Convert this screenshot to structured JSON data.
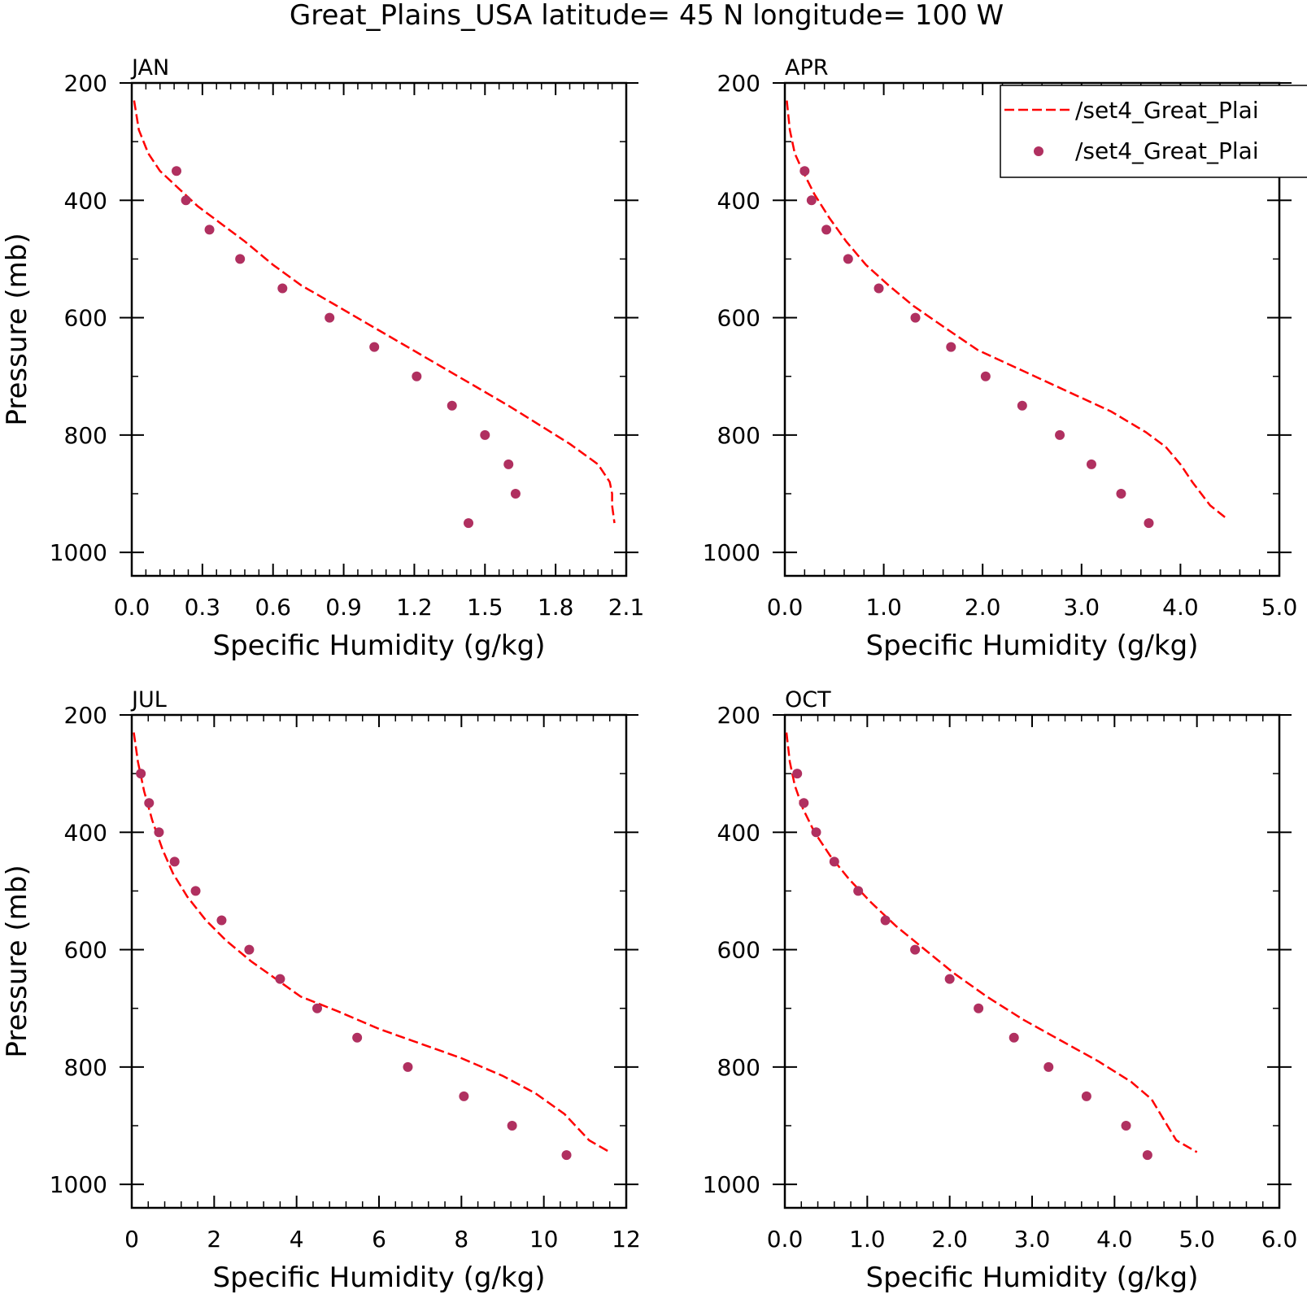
{
  "figure": {
    "title": "Great_Plains_USA  latitude= 45 N longitude= 100 W"
  },
  "legend": {
    "entries": [
      {
        "label": "/set4_Great_Plai",
        "style": "dashed-line",
        "color": "#ff0000"
      },
      {
        "label": "/set4_Great_Plai",
        "style": "dot",
        "color": "#b03060"
      }
    ],
    "placement": "top-right of APR panel"
  },
  "colors": {
    "model_line": "#ff0000",
    "obs_points": "#b03060",
    "axes": "#000000",
    "background": "#ffffff"
  },
  "chart_data": [
    {
      "panel": "JAN",
      "type": "line",
      "xlabel": "Specific Humidity (g/kg)",
      "ylabel": "Pressure (mb)",
      "xlim": [
        0,
        2.1
      ],
      "ylim": [
        1000,
        200
      ],
      "y_inverted": true,
      "xticks": [
        "0.0",
        "0.3",
        "0.6",
        "0.9",
        "1.2",
        "1.5",
        "1.8",
        "2.1"
      ],
      "xtick_values": [
        0,
        0.3,
        0.6,
        0.9,
        1.2,
        1.5,
        1.8,
        2.1
      ],
      "yticks": [
        "200",
        "400",
        "600",
        "800",
        "1000"
      ],
      "ytick_values": [
        200,
        400,
        600,
        800,
        1000
      ],
      "series": [
        {
          "style": "dashed-line",
          "x": [
            0.01,
            0.03,
            0.07,
            0.12,
            0.2,
            0.28,
            0.38,
            0.48,
            0.6,
            0.72,
            0.85,
            1.0,
            1.15,
            1.3,
            1.45,
            1.6,
            1.72,
            1.86,
            1.98,
            2.03,
            2.04,
            2.04,
            2.05
          ],
          "y": [
            230,
            280,
            320,
            350,
            380,
            410,
            440,
            470,
            510,
            545,
            575,
            610,
            645,
            680,
            715,
            750,
            780,
            815,
            850,
            880,
            900,
            920,
            950
          ]
        },
        {
          "style": "points",
          "x": [
            0.19,
            0.23,
            0.33,
            0.46,
            0.64,
            0.84,
            1.03,
            1.21,
            1.36,
            1.5,
            1.6,
            1.63,
            1.43
          ],
          "y": [
            350,
            400,
            450,
            500,
            550,
            600,
            650,
            700,
            750,
            800,
            850,
            900,
            950
          ]
        }
      ]
    },
    {
      "panel": "APR",
      "type": "line",
      "xlabel": "Specific Humidity (g/kg)",
      "ylabel": "",
      "xlim": [
        0,
        5
      ],
      "ylim": [
        1000,
        200
      ],
      "y_inverted": true,
      "xticks": [
        "0.0",
        "1.0",
        "2.0",
        "3.0",
        "4.0",
        "5.0"
      ],
      "xtick_values": [
        0,
        1,
        2,
        3,
        4,
        5
      ],
      "yticks": [
        "200",
        "400",
        "600",
        "800",
        "1000"
      ],
      "ytick_values": [
        200,
        400,
        600,
        800,
        1000
      ],
      "series": [
        {
          "style": "dashed-line",
          "x": [
            0.02,
            0.05,
            0.1,
            0.18,
            0.3,
            0.45,
            0.62,
            0.82,
            1.05,
            1.3,
            1.6,
            1.95,
            2.4,
            2.85,
            3.3,
            3.65,
            3.85,
            4.0,
            4.12,
            4.3,
            4.45
          ],
          "y": [
            230,
            280,
            320,
            350,
            390,
            430,
            470,
            510,
            545,
            580,
            615,
            655,
            690,
            725,
            760,
            795,
            820,
            850,
            880,
            920,
            940
          ]
        },
        {
          "style": "points",
          "x": [
            0.2,
            0.27,
            0.42,
            0.64,
            0.95,
            1.32,
            1.68,
            2.03,
            2.4,
            2.78,
            3.1,
            3.4,
            3.68
          ],
          "y": [
            350,
            400,
            450,
            500,
            550,
            600,
            650,
            700,
            750,
            800,
            850,
            900,
            950
          ]
        }
      ]
    },
    {
      "panel": "JUL",
      "type": "line",
      "xlabel": "Specific Humidity (g/kg)",
      "ylabel": "Pressure (mb)",
      "xlim": [
        0,
        12
      ],
      "ylim": [
        1000,
        200
      ],
      "y_inverted": true,
      "xticks": [
        "0",
        "2",
        "4",
        "6",
        "8",
        "10",
        "12"
      ],
      "xtick_values": [
        0,
        2,
        4,
        6,
        8,
        10,
        12
      ],
      "yticks": [
        "200",
        "400",
        "600",
        "800",
        "1000"
      ],
      "ytick_values": [
        200,
        400,
        600,
        800,
        1000
      ],
      "series": [
        {
          "style": "dashed-line",
          "x": [
            0.05,
            0.15,
            0.3,
            0.5,
            0.75,
            1.0,
            1.35,
            1.8,
            2.3,
            2.9,
            3.5,
            4.1,
            5.0,
            6.0,
            7.0,
            8.0,
            9.0,
            9.8,
            10.5,
            11.1,
            11.6
          ],
          "y": [
            230,
            280,
            330,
            380,
            430,
            470,
            510,
            550,
            585,
            620,
            650,
            680,
            705,
            735,
            760,
            785,
            815,
            845,
            880,
            925,
            945
          ]
        },
        {
          "style": "points",
          "x": [
            0.22,
            0.42,
            0.66,
            1.04,
            1.55,
            2.18,
            2.85,
            3.6,
            4.5,
            5.47,
            6.7,
            8.06,
            9.23,
            10.55
          ],
          "y": [
            300,
            350,
            400,
            450,
            500,
            550,
            600,
            650,
            700,
            750,
            800,
            850,
            900,
            950
          ]
        }
      ]
    },
    {
      "panel": "OCT",
      "type": "line",
      "xlabel": "Specific Humidity (g/kg)",
      "ylabel": "",
      "xlim": [
        0,
        6
      ],
      "ylim": [
        1000,
        200
      ],
      "y_inverted": true,
      "xticks": [
        "0.0",
        "1.0",
        "2.0",
        "3.0",
        "4.0",
        "5.0",
        "6.0"
      ],
      "xtick_values": [
        0,
        1,
        2,
        3,
        4,
        5,
        6
      ],
      "yticks": [
        "200",
        "400",
        "600",
        "800",
        "1000"
      ],
      "ytick_values": [
        200,
        400,
        600,
        800,
        1000
      ],
      "series": [
        {
          "style": "dashed-line",
          "x": [
            0.02,
            0.06,
            0.12,
            0.22,
            0.36,
            0.55,
            0.78,
            1.05,
            1.35,
            1.7,
            2.05,
            2.45,
            2.9,
            3.35,
            3.8,
            4.2,
            4.45,
            4.6,
            4.75,
            5.0
          ],
          "y": [
            230,
            280,
            320,
            360,
            400,
            440,
            480,
            520,
            560,
            600,
            640,
            680,
            720,
            755,
            790,
            825,
            855,
            890,
            925,
            945
          ]
        },
        {
          "style": "points",
          "x": [
            0.15,
            0.23,
            0.38,
            0.6,
            0.89,
            1.22,
            1.58,
            2.0,
            2.35,
            2.78,
            3.2,
            3.66,
            4.14,
            4.4
          ],
          "y": [
            300,
            350,
            400,
            450,
            500,
            550,
            600,
            650,
            700,
            750,
            800,
            850,
            900,
            950
          ]
        }
      ]
    }
  ]
}
